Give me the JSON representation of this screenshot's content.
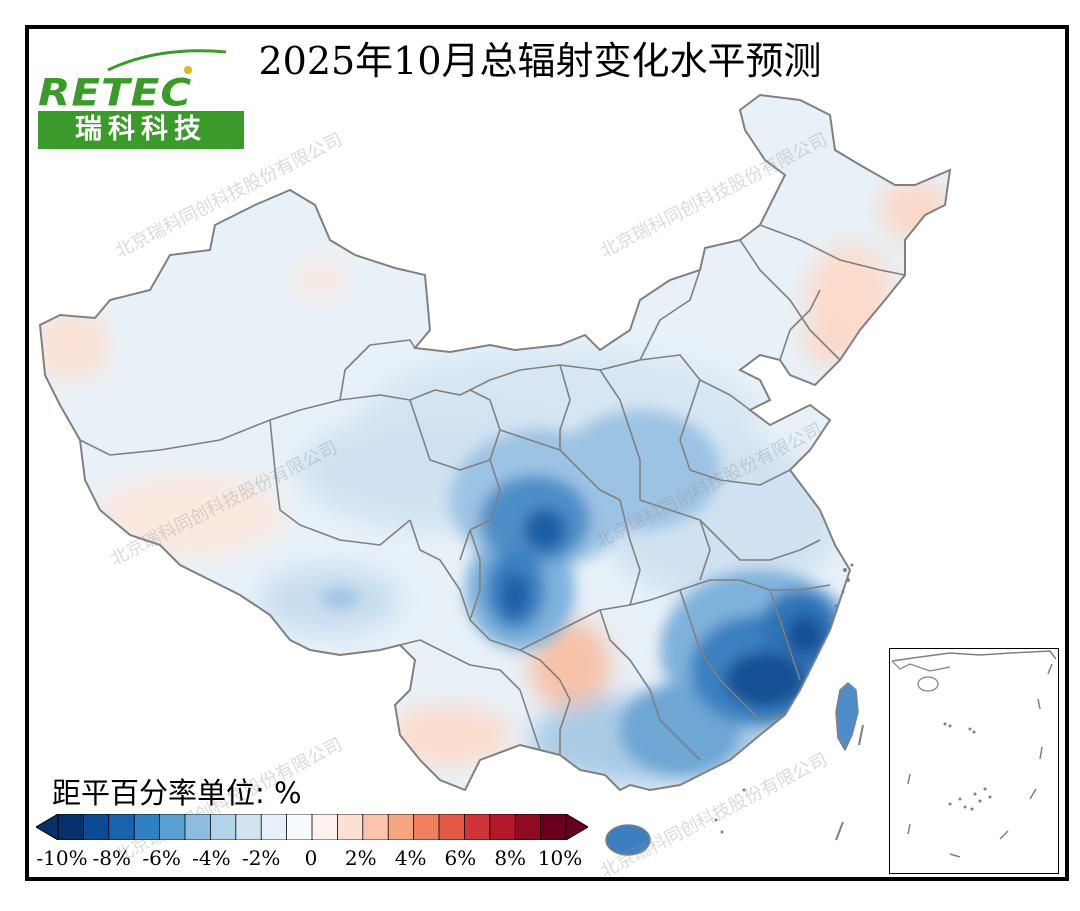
{
  "title": "2025年10月总辐射变化水平预测",
  "logo": {
    "latin": "RETEC",
    "chinese": "瑞科科技"
  },
  "watermark_text": "北京瑞科同创科技股份有限公司",
  "legend": {
    "unit_label": "距平百分率单位: %",
    "ticks": [
      "-10%",
      "-8%",
      "-6%",
      "-4%",
      "-2%",
      "0",
      "2%",
      "4%",
      "6%",
      "8%",
      "10%"
    ],
    "colors": [
      "#08306b",
      "#0d4a93",
      "#1a62ad",
      "#3180c0",
      "#5b9fd0",
      "#8cbde0",
      "#b3d3ea",
      "#d1e3f1",
      "#e7f0f8",
      "#f7fafd",
      "#fdf1ec",
      "#fde0d2",
      "#fbc4ab",
      "#f6a582",
      "#ee8060",
      "#e35a47",
      "#cf3538",
      "#b3192b",
      "#8e0c21",
      "#67001f"
    ]
  },
  "map": {
    "colors": {
      "neutral": "#eef4fa",
      "light_blue": "#dae8f4",
      "mid_blue": "#a9cbe6",
      "blue": "#6ea6d4",
      "deep_blue": "#2f75b8",
      "darkest_blue": "#0f4c90",
      "light_red": "#fbe2d6",
      "red": "#f6c1a7",
      "border": "#808080"
    }
  }
}
